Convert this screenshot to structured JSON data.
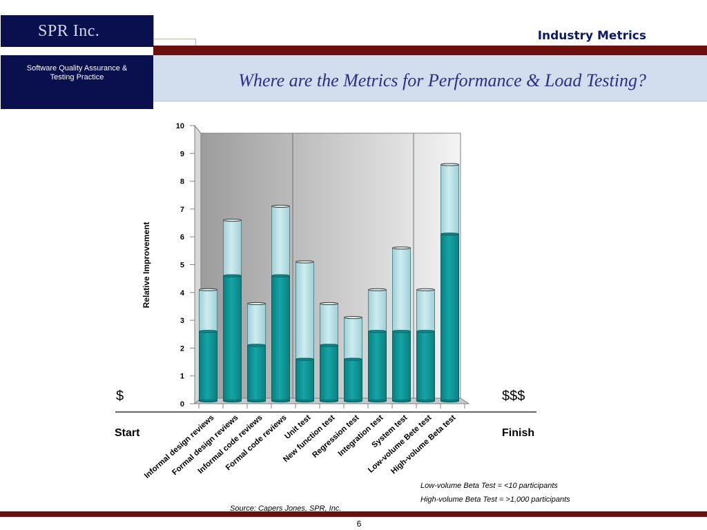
{
  "header": {
    "logo_text": "SPR Inc.",
    "section_title": "Industry Metrics",
    "sidebar_text_line1": "Software Quality Assurance &",
    "sidebar_text_line2": "Testing Practice",
    "slide_title": "Where are the Metrics for Performance & Load Testing?"
  },
  "colors": {
    "brand_navy": "#0a0f4e",
    "accent_maroon": "#6b0f0f",
    "bar_dark": "#0f9a9a",
    "bar_light": "#b9e1e6"
  },
  "annotations": {
    "start": "Start",
    "finish": "Finish",
    "cost_low": "$",
    "cost_high": "$$$",
    "note1": "Low-volume Beta Test =   <10 participants",
    "note2": "High-volume Beta Test =  >1,000 participants",
    "source": "Source: Capers Jones, SPR, Inc.",
    "page_number": "6"
  },
  "chart_data": {
    "type": "bar",
    "stacked": true,
    "ylabel": "Relative Improvement",
    "ylim": [
      0,
      10
    ],
    "yticks": [
      "0",
      "1",
      "2",
      "3",
      "4",
      "5",
      "6",
      "7",
      "8",
      "9",
      "10"
    ],
    "categories": [
      "Informal design reviews",
      "Formal design reviews",
      "Informal code reviews",
      "Formal code reviews",
      "Unit test",
      "New function test",
      "Regression test",
      "Integration test",
      "System test",
      "Low-volume Bete test",
      "High-volume Beta test"
    ],
    "series": [
      {
        "values": [
          2.5,
          4.5,
          2.0,
          4.5,
          1.5,
          2.0,
          1.5,
          2.5,
          2.5,
          2.5,
          6.0
        ]
      },
      {
        "values": [
          1.5,
          2.0,
          1.5,
          2.5,
          3.5,
          1.5,
          1.5,
          1.5,
          3.0,
          1.5,
          2.5
        ]
      }
    ],
    "grid": "vertical-lines-after-categories-4-and-9"
  }
}
